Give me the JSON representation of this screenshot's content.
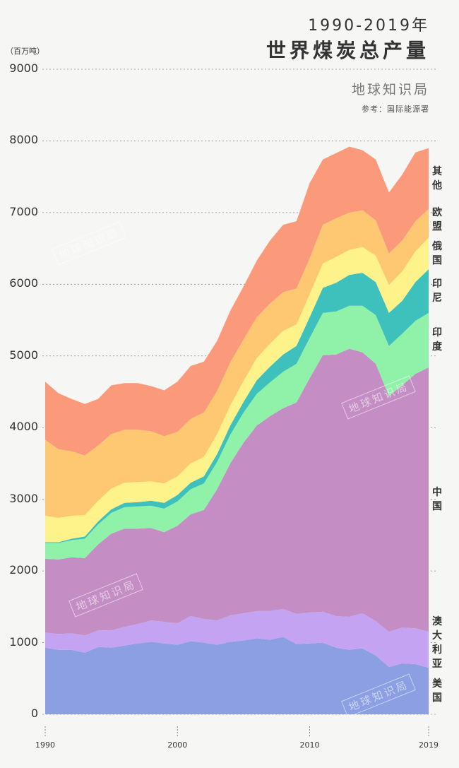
{
  "header": {
    "title_line1": "1990-2019年",
    "title_line2": "世界煤炭总产量",
    "brand": "地球知识局",
    "source": "参考：国际能源署",
    "unit": "（百万吨）"
  },
  "watermark": "地球知识局",
  "chart_data": {
    "type": "area",
    "stacked": true,
    "title": "1990-2019年 世界煤炭总产量",
    "ylabel": "（百万吨）",
    "ylim": [
      0,
      9000
    ],
    "xlim": [
      1990,
      2019
    ],
    "yticks": [
      0,
      1000,
      2000,
      3000,
      4000,
      5000,
      6000,
      7000,
      8000,
      9000
    ],
    "xticks": [
      1990,
      2000,
      2010,
      2019
    ],
    "grid": "horizontal-dotted",
    "x": [
      1990,
      1991,
      1992,
      1993,
      1994,
      1995,
      1996,
      1997,
      1998,
      1999,
      2000,
      2001,
      2002,
      2003,
      2004,
      2005,
      2006,
      2007,
      2008,
      2009,
      2010,
      2011,
      2012,
      2013,
      2014,
      2015,
      2016,
      2017,
      2018,
      2019
    ],
    "series": [
      {
        "name": "美国",
        "color": "#8b9fe2",
        "values": [
          930,
          900,
          900,
          860,
          940,
          930,
          960,
          990,
          1010,
          990,
          970,
          1020,
          1000,
          970,
          1010,
          1030,
          1060,
          1040,
          1080,
          980,
          990,
          1000,
          930,
          900,
          920,
          820,
          660,
          710,
          700,
          650
        ]
      },
      {
        "name": "澳大利亚",
        "color": "#c4a4f2",
        "values": [
          210,
          220,
          230,
          240,
          230,
          240,
          260,
          270,
          300,
          300,
          300,
          350,
          330,
          340,
          370,
          380,
          380,
          400,
          390,
          420,
          430,
          430,
          440,
          460,
          490,
          480,
          490,
          500,
          500,
          500
        ]
      },
      {
        "name": "中国",
        "color": "#c48ec4",
        "values": [
          1030,
          1040,
          1060,
          1080,
          1200,
          1350,
          1370,
          1330,
          1290,
          1250,
          1360,
          1420,
          1520,
          1830,
          2120,
          2380,
          2590,
          2720,
          2800,
          2950,
          3270,
          3580,
          3650,
          3740,
          3640,
          3590,
          3290,
          3380,
          3550,
          3690
        ]
      },
      {
        "name": "印度",
        "color": "#8ff2a8",
        "values": [
          220,
          230,
          240,
          270,
          280,
          290,
          300,
          310,
          310,
          330,
          340,
          350,
          370,
          380,
          400,
          420,
          440,
          470,
          510,
          540,
          560,
          590,
          600,
          600,
          650,
          680,
          700,
          720,
          740,
          760
        ]
      },
      {
        "name": "印尼",
        "color": "#3ec0bc",
        "values": [
          10,
          10,
          20,
          30,
          40,
          50,
          60,
          60,
          70,
          80,
          90,
          90,
          100,
          110,
          130,
          150,
          190,
          220,
          240,
          250,
          290,
          350,
          400,
          430,
          460,
          460,
          460,
          460,
          540,
          610
        ]
      },
      {
        "name": "俄国",
        "color": "#fdf38a",
        "values": [
          370,
          340,
          320,
          300,
          290,
          290,
          280,
          280,
          270,
          270,
          260,
          270,
          270,
          280,
          280,
          290,
          310,
          320,
          330,
          300,
          320,
          340,
          360,
          350,
          360,
          370,
          390,
          410,
          430,
          440
        ]
      },
      {
        "name": "欧盟",
        "color": "#fec872",
        "values": [
          1060,
          960,
          900,
          830,
          770,
          760,
          740,
          730,
          700,
          660,
          620,
          620,
          620,
          600,
          600,
          580,
          570,
          560,
          540,
          500,
          500,
          540,
          540,
          520,
          510,
          490,
          440,
          430,
          420,
          400
        ]
      },
      {
        "name": "其他",
        "color": "#fb9a7a",
        "values": [
          810,
          780,
          730,
          720,
          650,
          680,
          650,
          650,
          630,
          640,
          700,
          740,
          710,
          700,
          720,
          740,
          790,
          880,
          940,
          940,
          1050,
          910,
          910,
          920,
          840,
          850,
          850,
          920,
          960,
          850
        ]
      }
    ]
  }
}
